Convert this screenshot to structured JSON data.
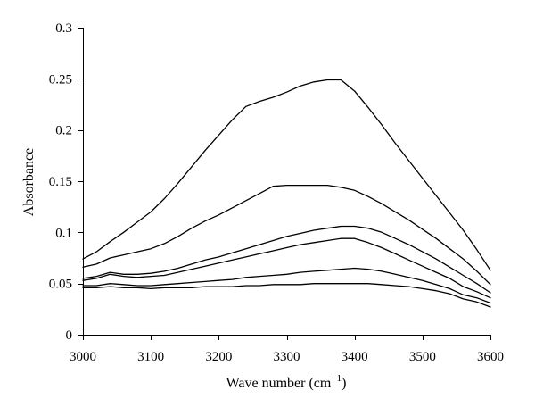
{
  "chart_data": {
    "type": "line",
    "title": "",
    "xlabel": "Wave number (cm",
    "xlabel_sup": "−1",
    "xlabel_close": ")",
    "ylabel": "Absorbance",
    "xlim": [
      3000,
      3600
    ],
    "ylim": [
      0,
      0.3
    ],
    "x_ticks": [
      3000,
      3100,
      3200,
      3300,
      3400,
      3500,
      3600
    ],
    "x_tick_labels": [
      "3000",
      "3100",
      "3200",
      "3300",
      "3400",
      "3500",
      "3600"
    ],
    "y_ticks": [
      0,
      0.05,
      0.1,
      0.15,
      0.2,
      0.25,
      0.3
    ],
    "y_tick_labels": [
      "0",
      "0.05",
      "0.1",
      "0.15",
      "0.2",
      "0.25",
      "0.3"
    ],
    "grid": false,
    "line_color": "#000000",
    "series": [
      {
        "x": [
          3000,
          3020,
          3040,
          3060,
          3080,
          3100,
          3120,
          3140,
          3160,
          3180,
          3200,
          3220,
          3240,
          3260,
          3280,
          3300,
          3320,
          3340,
          3360,
          3380,
          3400,
          3420,
          3440,
          3460,
          3480,
          3500,
          3520,
          3540,
          3560,
          3580,
          3600
        ],
        "y": [
          0.074,
          0.081,
          0.091,
          0.1,
          0.11,
          0.12,
          0.133,
          0.148,
          0.164,
          0.18,
          0.195,
          0.21,
          0.223,
          0.228,
          0.232,
          0.237,
          0.243,
          0.247,
          0.249,
          0.249,
          0.238,
          0.222,
          0.205,
          0.187,
          0.17,
          0.153,
          0.136,
          0.119,
          0.102,
          0.083,
          0.063
        ]
      },
      {
        "x": [
          3000,
          3020,
          3040,
          3060,
          3080,
          3100,
          3120,
          3140,
          3160,
          3180,
          3200,
          3220,
          3240,
          3260,
          3280,
          3300,
          3320,
          3340,
          3360,
          3380,
          3400,
          3420,
          3440,
          3460,
          3480,
          3500,
          3520,
          3540,
          3560,
          3580,
          3600
        ],
        "y": [
          0.066,
          0.069,
          0.075,
          0.078,
          0.081,
          0.084,
          0.089,
          0.096,
          0.104,
          0.111,
          0.117,
          0.124,
          0.131,
          0.138,
          0.145,
          0.146,
          0.146,
          0.146,
          0.146,
          0.144,
          0.141,
          0.135,
          0.128,
          0.12,
          0.112,
          0.103,
          0.094,
          0.084,
          0.074,
          0.062,
          0.049
        ]
      },
      {
        "x": [
          3000,
          3020,
          3040,
          3060,
          3080,
          3100,
          3120,
          3140,
          3160,
          3180,
          3200,
          3220,
          3240,
          3260,
          3280,
          3300,
          3320,
          3340,
          3360,
          3380,
          3400,
          3420,
          3440,
          3460,
          3480,
          3500,
          3520,
          3540,
          3560,
          3580,
          3600
        ],
        "y": [
          0.055,
          0.057,
          0.061,
          0.059,
          0.059,
          0.06,
          0.062,
          0.065,
          0.069,
          0.073,
          0.076,
          0.08,
          0.084,
          0.088,
          0.092,
          0.096,
          0.099,
          0.102,
          0.104,
          0.106,
          0.106,
          0.104,
          0.1,
          0.094,
          0.088,
          0.081,
          0.074,
          0.066,
          0.058,
          0.05,
          0.041
        ]
      },
      {
        "x": [
          3000,
          3020,
          3040,
          3060,
          3080,
          3100,
          3120,
          3140,
          3160,
          3180,
          3200,
          3220,
          3240,
          3260,
          3280,
          3300,
          3320,
          3340,
          3360,
          3380,
          3400,
          3420,
          3440,
          3460,
          3480,
          3500,
          3520,
          3540,
          3560,
          3580,
          3600
        ],
        "y": [
          0.053,
          0.055,
          0.059,
          0.057,
          0.056,
          0.057,
          0.058,
          0.061,
          0.064,
          0.067,
          0.07,
          0.073,
          0.076,
          0.079,
          0.082,
          0.085,
          0.088,
          0.09,
          0.092,
          0.094,
          0.094,
          0.09,
          0.085,
          0.079,
          0.073,
          0.067,
          0.061,
          0.055,
          0.047,
          0.042,
          0.036
        ]
      },
      {
        "x": [
          3000,
          3020,
          3040,
          3060,
          3080,
          3100,
          3120,
          3140,
          3160,
          3180,
          3200,
          3220,
          3240,
          3260,
          3280,
          3300,
          3320,
          3340,
          3360,
          3380,
          3400,
          3420,
          3440,
          3460,
          3480,
          3500,
          3520,
          3540,
          3560,
          3580,
          3600
        ],
        "y": [
          0.048,
          0.048,
          0.05,
          0.049,
          0.048,
          0.048,
          0.049,
          0.05,
          0.051,
          0.052,
          0.053,
          0.054,
          0.056,
          0.057,
          0.058,
          0.059,
          0.061,
          0.062,
          0.063,
          0.064,
          0.065,
          0.064,
          0.062,
          0.059,
          0.056,
          0.053,
          0.049,
          0.045,
          0.039,
          0.036,
          0.031
        ]
      },
      {
        "x": [
          3000,
          3020,
          3040,
          3060,
          3080,
          3100,
          3120,
          3140,
          3160,
          3180,
          3200,
          3220,
          3240,
          3260,
          3280,
          3300,
          3320,
          3340,
          3360,
          3380,
          3400,
          3420,
          3440,
          3460,
          3480,
          3500,
          3520,
          3540,
          3560,
          3580,
          3600
        ],
        "y": [
          0.046,
          0.046,
          0.047,
          0.046,
          0.046,
          0.045,
          0.046,
          0.046,
          0.046,
          0.047,
          0.047,
          0.047,
          0.048,
          0.048,
          0.049,
          0.049,
          0.049,
          0.05,
          0.05,
          0.05,
          0.05,
          0.05,
          0.049,
          0.048,
          0.047,
          0.045,
          0.043,
          0.04,
          0.035,
          0.032,
          0.027
        ]
      }
    ]
  }
}
